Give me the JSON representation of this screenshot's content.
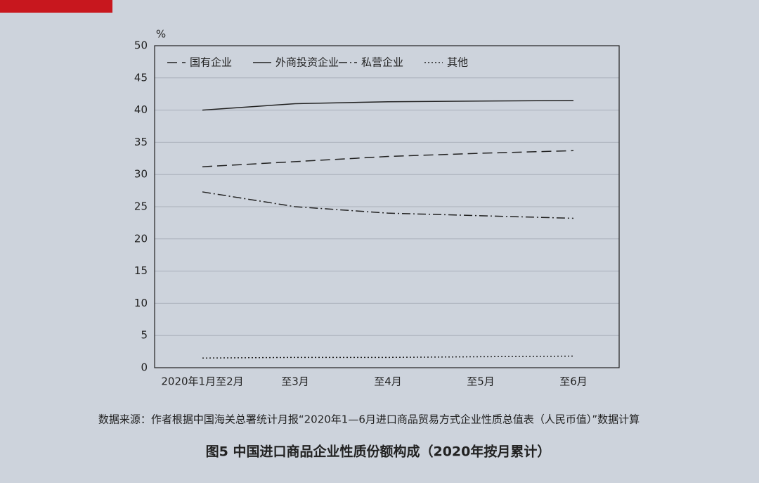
{
  "chart_data": {
    "type": "line",
    "title": "图5 中国进口商品企业性质份额构成（2020年按月累计）",
    "source": "数据来源：作者根据中国海关总署统计月报“2020年1—6月进口商品贸易方式企业性质总值表（人民币值）”数据计算",
    "ylabel": "%",
    "categories": [
      "2020年1月至2月",
      "至3月",
      "至4月",
      "至5月",
      "至6月"
    ],
    "series": [
      {
        "name": "国有企业",
        "color": "#222222",
        "linestyle": "dashed",
        "values": [
          31.2,
          32.0,
          32.8,
          33.3,
          33.7
        ]
      },
      {
        "name": "外商投资企业",
        "color": "#222222",
        "linestyle": "solid",
        "values": [
          40.0,
          41.0,
          41.3,
          41.4,
          41.5
        ]
      },
      {
        "name": "私营企业",
        "color": "#222222",
        "linestyle": "dashdot",
        "values": [
          27.3,
          25.0,
          24.0,
          23.6,
          23.2
        ]
      },
      {
        "name": "其他",
        "color": "#222222",
        "linestyle": "dotted",
        "values": [
          1.5,
          1.6,
          1.6,
          1.7,
          1.8
        ]
      }
    ],
    "ylim": [
      0,
      50
    ],
    "yticks": [
      0,
      5,
      10,
      15,
      20,
      25,
      30,
      35,
      40,
      45,
      50
    ],
    "grid": true,
    "legend": "top"
  }
}
